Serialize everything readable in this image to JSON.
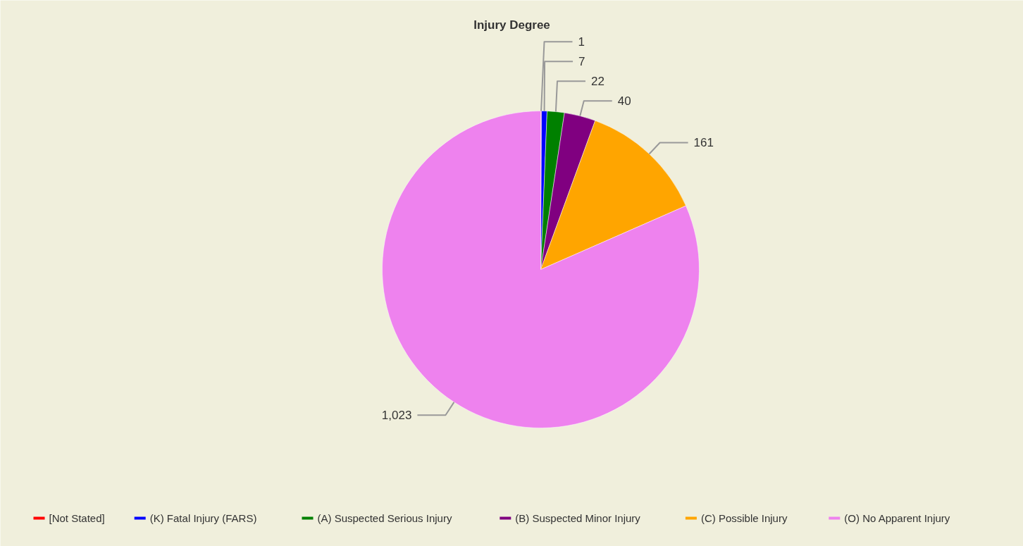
{
  "chart_data": {
    "type": "pie",
    "title": "Injury Degree",
    "categories": [
      "[Not Stated]",
      "(K) Fatal Injury (FARS)",
      "(A) Suspected Serious Injury",
      "(B) Suspected Minor Injury",
      "(C) Possible Injury",
      "(O) No Apparent Injury"
    ],
    "values": [
      1,
      7,
      22,
      40,
      161,
      1023
    ],
    "value_labels": [
      "1",
      "7",
      "22",
      "40",
      "161",
      "1,023"
    ],
    "colors": [
      "#ff0000",
      "#0000ff",
      "#008000",
      "#800080",
      "#ffa500",
      "#ee82ee"
    ],
    "legend": "bottom"
  }
}
